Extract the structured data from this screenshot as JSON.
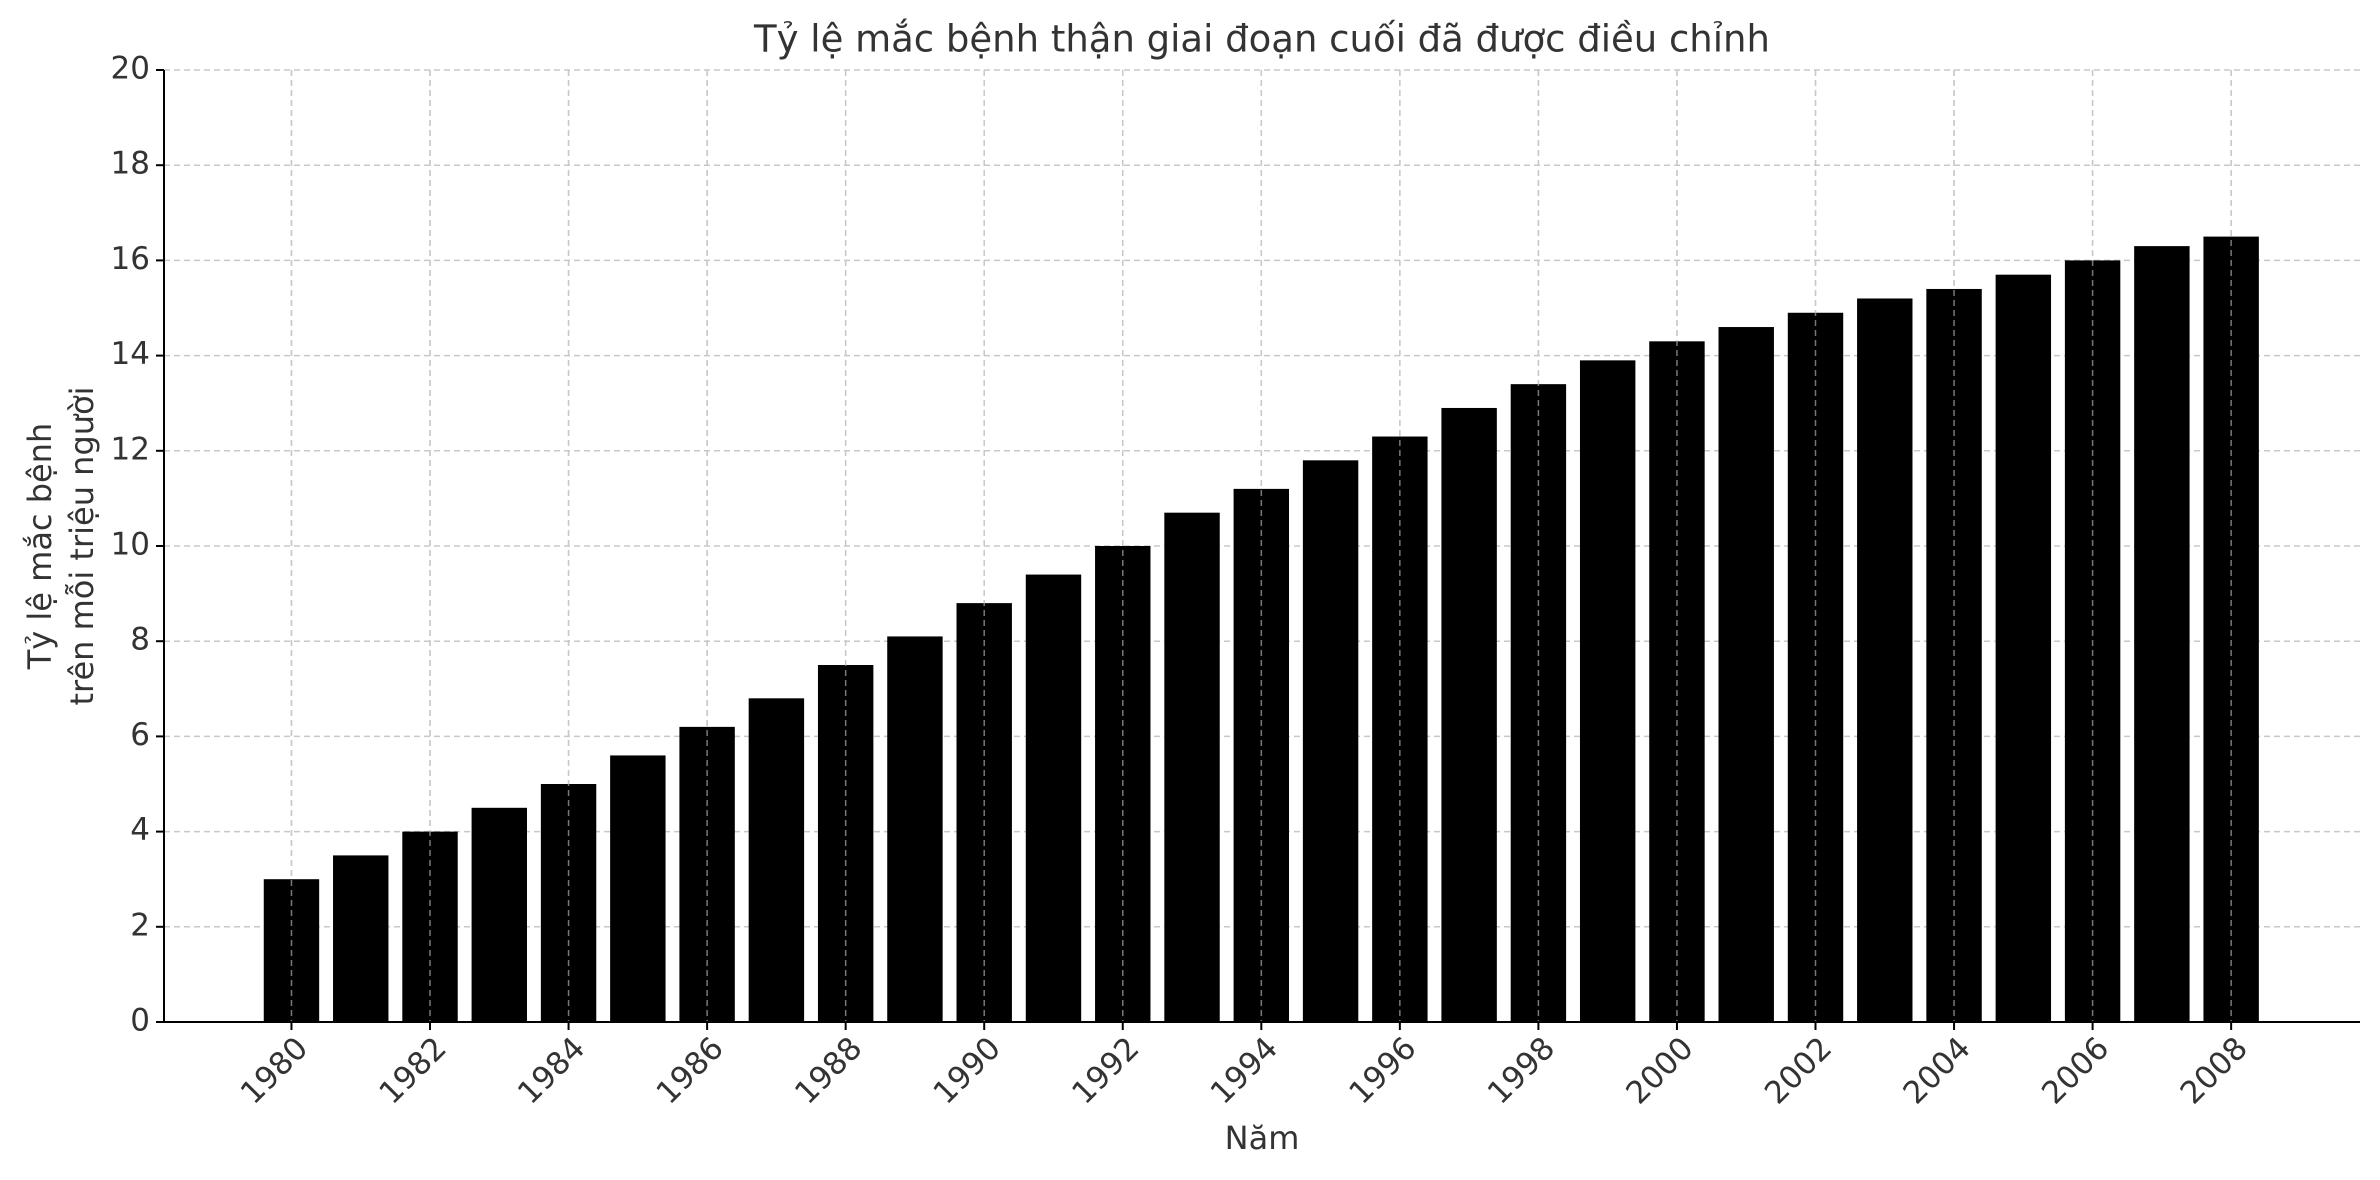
{
  "chart_data": {
    "type": "bar",
    "title": "Tỷ lệ mắc bệnh thận giai đoạn cuối đã được điều chỉnh",
    "xlabel": "Năm",
    "ylabel": [
      "Tỷ lệ mắc bệnh",
      "trên mỗi triệu người"
    ],
    "x": [
      1980,
      1981,
      1982,
      1983,
      1984,
      1985,
      1986,
      1987,
      1988,
      1989,
      1990,
      1991,
      1992,
      1993,
      1994,
      1995,
      1996,
      1997,
      1998,
      1999,
      2000,
      2001,
      2002,
      2003,
      2004,
      2005,
      2006,
      2007,
      2008
    ],
    "values": [
      3.0,
      3.5,
      4.0,
      4.5,
      5.0,
      5.6,
      6.2,
      6.8,
      7.5,
      8.1,
      8.8,
      9.4,
      10.0,
      10.7,
      11.2,
      11.8,
      12.3,
      12.9,
      13.4,
      13.9,
      14.3,
      14.6,
      14.9,
      15.2,
      15.4,
      15.7,
      16.0,
      16.3,
      16.5
    ],
    "color": "#000000",
    "xlim": [
      1978.16,
      2009.86
    ],
    "xticks": [
      1980,
      1982,
      1984,
      1986,
      1988,
      1990,
      1992,
      1994,
      1996,
      1998,
      2000,
      2002,
      2004,
      2006,
      2008
    ],
    "ylim": [
      0,
      20
    ],
    "yticks": [
      0,
      2,
      4,
      6,
      8,
      10,
      12,
      14,
      16,
      18,
      20
    ],
    "grid": true
  }
}
